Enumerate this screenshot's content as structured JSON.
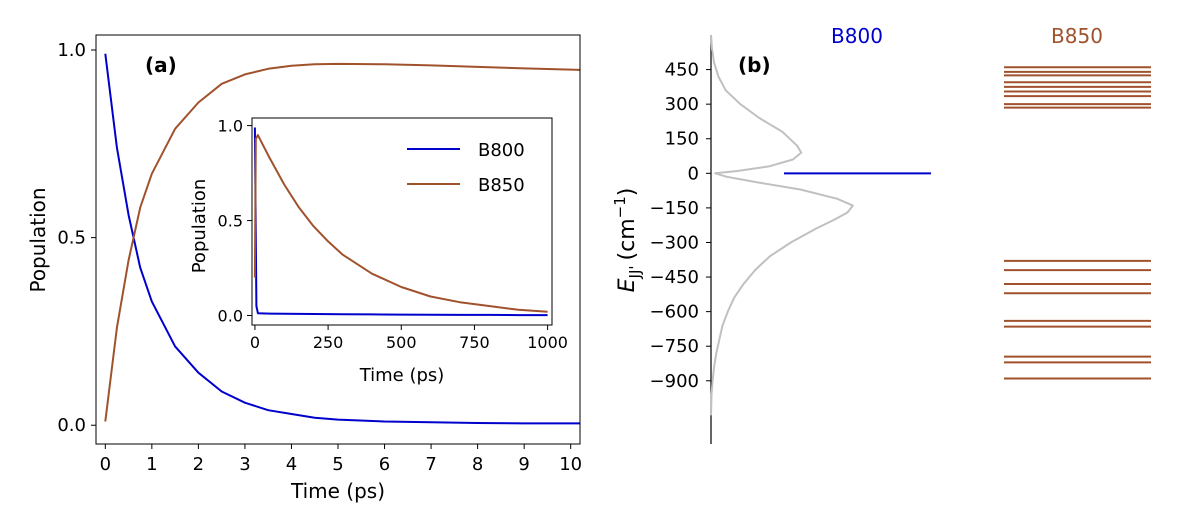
{
  "chart_data": [
    {
      "panel": "(a)",
      "type": "line",
      "xlabel": "Time (ps)",
      "ylabel": "Population",
      "xlim": [
        -0.2,
        10.2
      ],
      "ylim": [
        -0.05,
        1.04
      ],
      "xticks": [
        0,
        1,
        2,
        3,
        4,
        5,
        6,
        7,
        8,
        9,
        10
      ],
      "yticks": [
        "0.0",
        "0.5",
        "1.0"
      ],
      "yticks_values": [
        0.0,
        0.5,
        1.0
      ],
      "grid": false,
      "x": [
        0,
        0.25,
        0.5,
        0.75,
        1,
        1.5,
        2,
        2.5,
        3,
        3.5,
        4,
        4.5,
        5,
        6,
        7,
        8,
        9,
        10.2
      ],
      "series": [
        {
          "name": "B800",
          "color": "#0000cc",
          "values": [
            0.99,
            0.74,
            0.56,
            0.42,
            0.33,
            0.21,
            0.14,
            0.09,
            0.06,
            0.04,
            0.03,
            0.02,
            0.015,
            0.01,
            0.008,
            0.006,
            0.005,
            0.005
          ]
        },
        {
          "name": "B850",
          "color": "#a0522d",
          "values": [
            0.01,
            0.26,
            0.44,
            0.58,
            0.67,
            0.79,
            0.86,
            0.91,
            0.935,
            0.95,
            0.958,
            0.962,
            0.963,
            0.962,
            0.959,
            0.955,
            0.951,
            0.947
          ]
        }
      ],
      "inset": {
        "xlabel": "Time (ps)",
        "ylabel": "Population",
        "xlim": [
          -10,
          1015
        ],
        "ylim": [
          -0.05,
          1.04
        ],
        "xticks": [
          0,
          250,
          500,
          750,
          1000
        ],
        "yticks": [
          "0.0",
          "0.5",
          "1.0"
        ],
        "yticks_values": [
          0.0,
          0.5,
          1.0
        ],
        "legend_position": "upper-right",
        "series": [
          {
            "name": "B800",
            "color": "#0000cc",
            "x": [
              0,
              2,
              5,
              10,
              50,
              100,
              200,
              300,
              400,
              500,
              600,
              700,
              800,
              900,
              1000
            ],
            "values": [
              0.99,
              0.6,
              0.05,
              0.012,
              0.01,
              0.009,
              0.008,
              0.007,
              0.006,
              0.005,
              0.004,
              0.003,
              0.003,
              0.002,
              0.002
            ]
          },
          {
            "name": "B850",
            "color": "#a0522d",
            "x": [
              0,
              3,
              10,
              20,
              50,
              100,
              150,
              200,
              250,
              300,
              400,
              500,
              600,
              700,
              800,
              900,
              1000
            ],
            "values": [
              0.2,
              0.93,
              0.95,
              0.92,
              0.83,
              0.69,
              0.57,
              0.47,
              0.39,
              0.32,
              0.22,
              0.15,
              0.1,
              0.07,
              0.05,
              0.03,
              0.02
            ]
          }
        ]
      }
    },
    {
      "panel": "(b)",
      "type": "energy-levels",
      "ylabel_main": "E",
      "ylabel_sub": "JJ'",
      "ylabel_unit_pre": "(cm",
      "ylabel_unit_sup": "−1",
      "ylabel_unit_post": ")",
      "ylim": [
        -1300,
        600
      ],
      "yticks": [
        "450",
        "300",
        "150",
        "0",
        "−150",
        "−300",
        "−450",
        "−600",
        "−750",
        "−900"
      ],
      "yticks_values": [
        450,
        300,
        150,
        0,
        -150,
        -300,
        -450,
        -600,
        -750,
        -900
      ],
      "columns": [
        {
          "name": "B800",
          "color": "#0000cc",
          "levels": [
            0
          ]
        },
        {
          "name": "B850",
          "color": "#a0522d",
          "levels": [
            460,
            440,
            425,
            395,
            375,
            355,
            335,
            300,
            285,
            -380,
            -420,
            -480,
            -520,
            -640,
            -665,
            -795,
            -820,
            -890
          ]
        }
      ],
      "density_profile": {
        "color": "#c0c0c0",
        "e": [
          600,
          540,
          480,
          420,
          360,
          300,
          240,
          180,
          120,
          90,
          60,
          30,
          10,
          0,
          -15,
          -40,
          -70,
          -110,
          -140,
          -170,
          -200,
          -240,
          -300,
          -360,
          -420,
          -480,
          -540,
          -600,
          -660,
          -720,
          -780,
          -840,
          -900,
          -960,
          -1050
        ],
        "amp": [
          0.0,
          0.01,
          0.03,
          0.07,
          0.14,
          0.28,
          0.46,
          0.68,
          0.82,
          0.86,
          0.78,
          0.55,
          0.25,
          0.04,
          0.15,
          0.45,
          0.85,
          1.2,
          1.35,
          1.3,
          1.18,
          1.0,
          0.76,
          0.56,
          0.42,
          0.31,
          0.22,
          0.16,
          0.11,
          0.08,
          0.05,
          0.03,
          0.015,
          0.005,
          0.0
        ]
      }
    }
  ]
}
